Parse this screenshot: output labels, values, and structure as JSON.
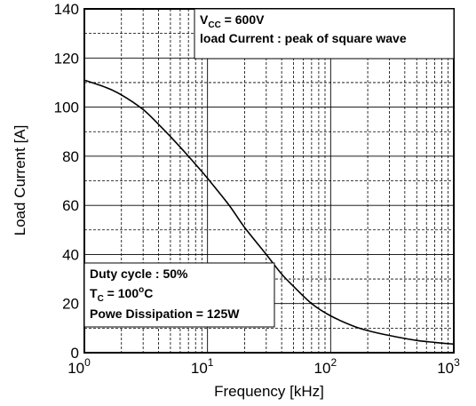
{
  "chart_data": {
    "type": "line",
    "xlabel": "Frequency [kHz]",
    "ylabel": "Load Current [A]",
    "xscale": "log",
    "xlim": [
      1,
      1000
    ],
    "ylim": [
      0,
      140
    ],
    "grid": true,
    "x_major_ticks": [
      {
        "base": "10",
        "exp": "0",
        "value": 1
      },
      {
        "base": "10",
        "exp": "1",
        "value": 10
      },
      {
        "base": "10",
        "exp": "2",
        "value": 100
      },
      {
        "base": "10",
        "exp": "3",
        "value": 1000
      }
    ],
    "y_ticks": [
      "0",
      "20",
      "40",
      "60",
      "80",
      "100",
      "120",
      "140"
    ],
    "series": [
      {
        "x": [
          1,
          1.5,
          2,
          3,
          4,
          5,
          7,
          10,
          15,
          20,
          30,
          40,
          50,
          70,
          100,
          150,
          200,
          300,
          500,
          700,
          1000
        ],
        "y": [
          111,
          108,
          105,
          99,
          93,
          88,
          80,
          71,
          60,
          51,
          40,
          32,
          27,
          20,
          15,
          11,
          9,
          7,
          5,
          4.2,
          3.5
        ]
      }
    ],
    "annotations": {
      "top": {
        "line1_v": "V",
        "line1_sub": "CC",
        "line1_rest": " = 600V",
        "line2": "load Current : peak of square wave"
      },
      "bottom": {
        "line1": "Duty cycle : 50%",
        "line2_t": "T",
        "line2_sub": "C",
        "line2_mid": " = 100",
        "line2_sup": "o",
        "line2_rest": "C",
        "line3": "Powe Dissipation = 125W"
      }
    }
  }
}
